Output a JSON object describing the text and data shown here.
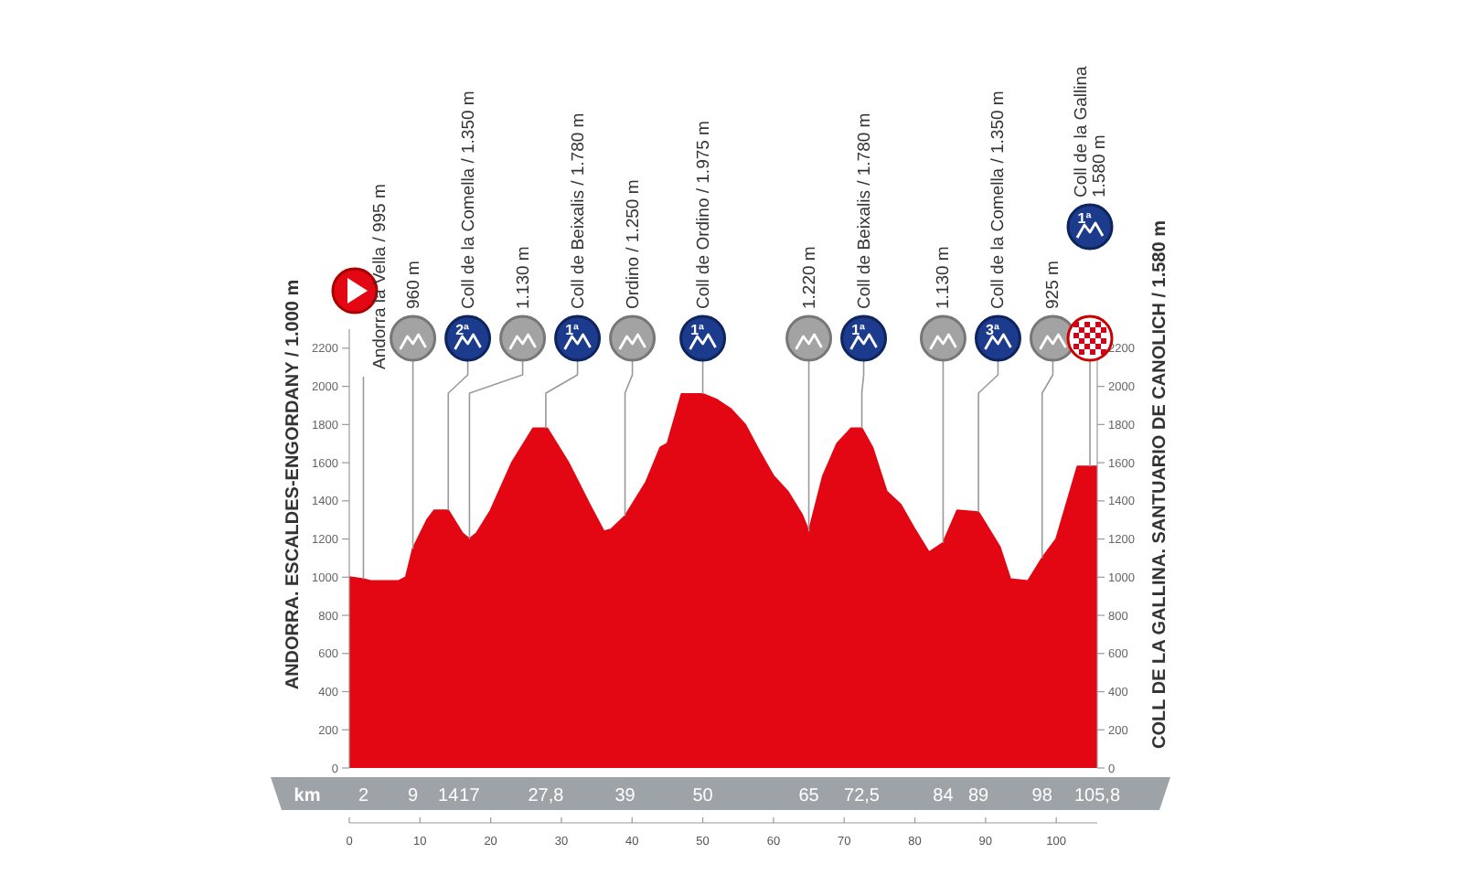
{
  "chart_data": {
    "type": "area",
    "ylabel": "ANDORRA. ESCALDES-ENGORDANY / 1.000 m",
    "y2label": "COLL DE LA GALLINA. SANTUARIO DE CANOLICH / 1.580 m",
    "x2label": "km",
    "x": [
      0,
      2,
      3,
      7,
      8,
      9,
      11,
      12,
      14,
      16,
      17,
      18,
      20,
      23,
      26,
      28,
      31,
      34,
      36,
      37,
      39,
      42,
      44,
      45,
      47,
      50,
      52,
      54,
      56,
      58,
      60,
      62,
      64,
      65,
      67,
      69,
      71,
      72.5,
      74,
      76,
      78,
      80,
      82,
      84,
      86,
      89,
      90,
      92,
      93.5,
      96,
      98,
      100,
      103,
      105.8
    ],
    "values": [
      1000,
      990,
      980,
      980,
      1000,
      1150,
      1300,
      1350,
      1350,
      1230,
      1200,
      1230,
      1350,
      1600,
      1780,
      1780,
      1600,
      1380,
      1240,
      1250,
      1320,
      1500,
      1680,
      1700,
      1960,
      1960,
      1930,
      1880,
      1800,
      1660,
      1530,
      1450,
      1330,
      1240,
      1530,
      1700,
      1780,
      1780,
      1680,
      1450,
      1380,
      1250,
      1130,
      1180,
      1350,
      1340,
      1280,
      1160,
      990,
      980,
      1100,
      1200,
      1580,
      1580
    ],
    "color": "#e30613",
    "xlim": [
      0,
      105.8
    ],
    "xticks": [
      0,
      10,
      20,
      30,
      40,
      50,
      60,
      70,
      80,
      90,
      100
    ],
    "x2lim": [
      0,
      105.8
    ],
    "x2ticks": [
      2,
      9,
      14,
      17,
      {
        "value": 27.8,
        "label": "27,8"
      },
      39,
      50,
      65,
      {
        "value": 72.5,
        "label": "72,5"
      },
      84,
      89,
      98,
      {
        "value": 105.8,
        "label": "105,8"
      }
    ],
    "ylim": [
      0,
      2300
    ],
    "yticks": [
      0,
      200,
      400,
      600,
      800,
      1000,
      1200,
      1400,
      1600,
      1800,
      2000,
      2200
    ],
    "y2lim": [
      0,
      2300
    ],
    "y2ticks": [
      0,
      200,
      400,
      600,
      800,
      1000,
      1200,
      1400,
      1600,
      1800,
      2000,
      2200
    ],
    "annotations": [
      {
        "text": "Andorra la Vella / 995 m",
        "x": 2,
        "y": 990
      },
      "960 m",
      "Coll de la Comella / 1.350 m",
      "1.130 m",
      "Coll de Beixalis / 1.780 m",
      "Ordino / 1.250 m",
      "Coll de Ordino / 1.975 m",
      "1.220 m",
      "Coll de Beixalis / 1.780 m",
      "1.130 m",
      "Coll de la Comella / 1.350 m",
      "925 m",
      "Coll de la Gallina\n1.580 m",
      "2ª",
      "1ª",
      "1ª",
      "1ª",
      "3ª",
      "1ª"
    ]
  }
}
